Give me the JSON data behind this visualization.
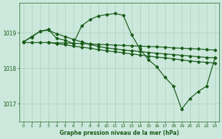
{
  "xlabel": "Graphe pression niveau de la mer (hPa)",
  "bg_color": "#cce8dc",
  "plot_bg_color": "#cce8dc",
  "line_color": "#1a5c1a",
  "grid_color": "#aacfbc",
  "tick_color": "#1a5c1a",
  "label_color": "#1a5c1a",
  "xlim": [
    -0.5,
    23.5
  ],
  "ylim": [
    1016.5,
    1019.85
  ],
  "yticks": [
    1017,
    1018,
    1019
  ],
  "xticks": [
    0,
    1,
    2,
    3,
    4,
    5,
    6,
    7,
    8,
    9,
    10,
    11,
    12,
    13,
    14,
    15,
    16,
    17,
    18,
    19,
    20,
    21,
    22,
    23
  ],
  "series": [
    {
      "x": [
        0,
        1,
        2,
        3,
        4,
        5,
        6,
        7,
        8,
        9,
        10,
        11,
        12,
        13,
        14,
        15,
        16,
        17,
        18,
        19,
        20,
        21,
        22,
        23
      ],
      "y": [
        1018.75,
        1018.9,
        1019.05,
        1019.1,
        1018.85,
        1018.8,
        1018.7,
        1019.2,
        1019.38,
        1019.48,
        1019.52,
        1019.55,
        1019.5,
        1018.95,
        1018.55,
        1018.25,
        1018.05,
        1017.75,
        1017.5,
        1016.85,
        1017.15,
        1017.35,
        1017.5,
        1018.3
      ]
    },
    {
      "x": [
        0,
        1,
        2,
        3,
        4,
        5,
        6,
        7,
        8,
        9,
        10,
        11,
        12,
        13,
        14,
        15,
        16,
        17,
        18,
        19,
        20,
        21,
        22,
        23
      ],
      "y": [
        1018.75,
        1018.88,
        1019.05,
        1019.08,
        1018.98,
        1018.9,
        1018.82,
        1018.75,
        1018.68,
        1018.62,
        1018.58,
        1018.55,
        1018.52,
        1018.5,
        1018.48,
        1018.45,
        1018.43,
        1018.41,
        1018.39,
        1018.37,
        1018.35,
        1018.33,
        1018.31,
        1018.3
      ]
    },
    {
      "x": [
        3,
        4,
        5,
        6,
        7,
        8,
        9,
        10,
        11,
        12,
        13,
        14,
        15,
        16,
        17,
        18,
        19,
        20,
        21,
        22,
        23
      ],
      "y": [
        1018.73,
        1018.7,
        1018.67,
        1018.63,
        1018.6,
        1018.57,
        1018.53,
        1018.5,
        1018.47,
        1018.44,
        1018.41,
        1018.38,
        1018.35,
        1018.32,
        1018.3,
        1018.27,
        1018.24,
        1018.21,
        1018.19,
        1018.17,
        1018.15
      ]
    },
    {
      "x": [
        0,
        1,
        2,
        3,
        4,
        5,
        6,
        7,
        8,
        9,
        10,
        11,
        12,
        13,
        14,
        15,
        16,
        17,
        18,
        19,
        20,
        21,
        22,
        23
      ],
      "y": [
        1018.73,
        1018.73,
        1018.73,
        1018.73,
        1018.72,
        1018.72,
        1018.71,
        1018.7,
        1018.69,
        1018.68,
        1018.67,
        1018.66,
        1018.65,
        1018.64,
        1018.63,
        1018.62,
        1018.61,
        1018.6,
        1018.58,
        1018.57,
        1018.56,
        1018.55,
        1018.53,
        1018.52
      ]
    }
  ]
}
